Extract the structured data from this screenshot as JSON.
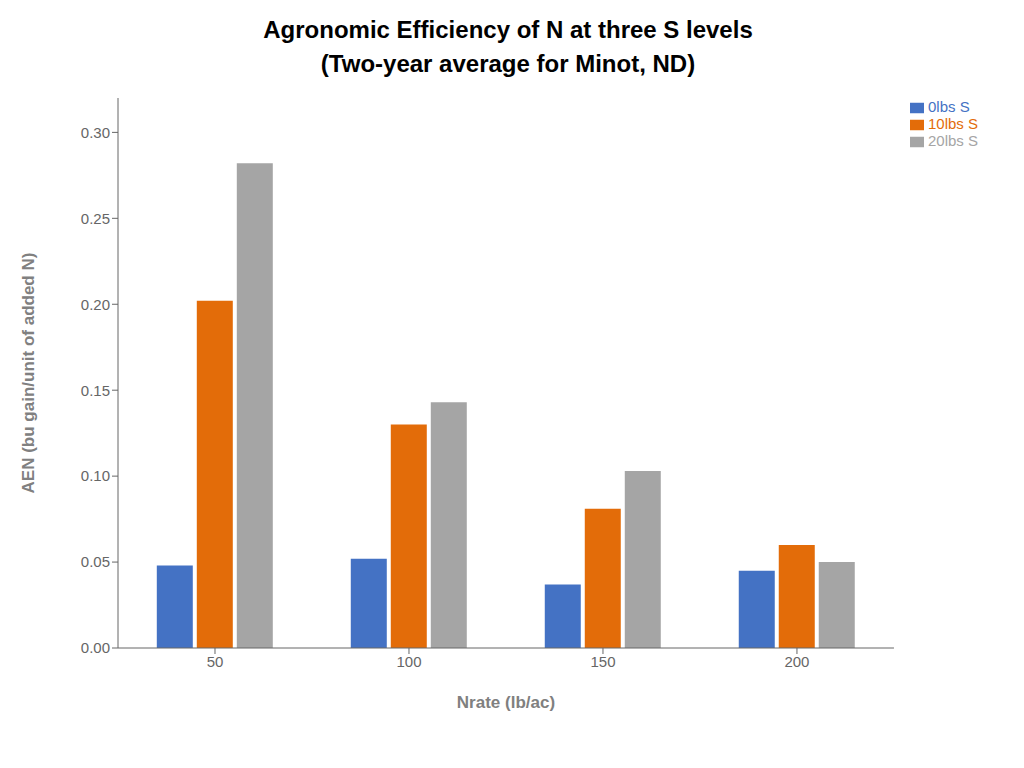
{
  "chart_data": {
    "type": "bar",
    "title": "Agronomic Efficiency of N at three S levels",
    "subtitle": "(Two-year average for Minot, ND)",
    "x_label": "Nrate (lb/ac)",
    "y_label": "AEN (bu gain/unit of added N)",
    "categories": [
      "50",
      "100",
      "150",
      "200"
    ],
    "series": [
      {
        "name": "0lbs S",
        "color": "#4472C4",
        "values": [
          0.048,
          0.052,
          0.037,
          0.045
        ]
      },
      {
        "name": "10lbs S",
        "color": "#E36C09",
        "values": [
          0.202,
          0.13,
          0.081,
          0.06
        ]
      },
      {
        "name": "20lbs S",
        "color": "#A5A5A5",
        "values": [
          0.282,
          0.143,
          0.103,
          0.05
        ]
      }
    ],
    "ylim": [
      0.0,
      0.32
    ],
    "yticks": [
      {
        "value": 0.0,
        "label": "0.00"
      },
      {
        "value": 0.05,
        "label": "0.05"
      },
      {
        "value": 0.1,
        "label": "0.10"
      },
      {
        "value": 0.15,
        "label": "0.15"
      },
      {
        "value": 0.2,
        "label": "0.20"
      },
      {
        "value": 0.25,
        "label": "0.25"
      },
      {
        "value": 0.3,
        "label": "0.30"
      }
    ],
    "grid": false,
    "legend": "upper right"
  }
}
